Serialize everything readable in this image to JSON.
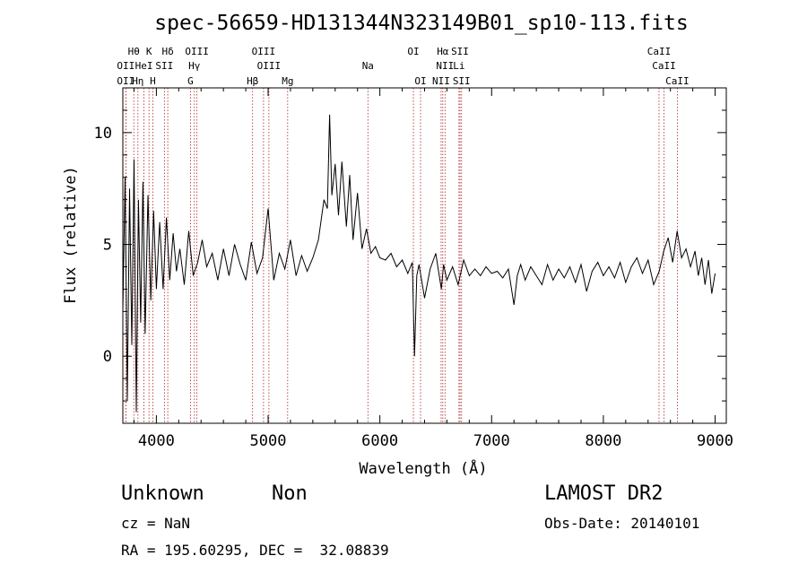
{
  "title": "spec-56659-HD131344N323149B01_sp10-113.fits",
  "footer": {
    "class_left": "Unknown",
    "class_right": "Non",
    "survey": "LAMOST DR2",
    "cz": "cz = NaN",
    "obs_date": "Obs-Date: 20140101",
    "coords": "RA = 195.60295, DEC =  32.08839"
  },
  "chart_data": {
    "type": "line",
    "xlabel": "Wavelength (Å)",
    "ylabel": "Flux (relative)",
    "xlim": [
      3700,
      9100
    ],
    "ylim": [
      -3.0,
      12.0
    ],
    "xticks": [
      4000,
      5000,
      6000,
      7000,
      8000,
      9000
    ],
    "yticks": [
      0,
      5,
      10
    ],
    "color": "#000000",
    "line_color": "#b22222",
    "series": [
      {
        "values_x": [
          3700,
          3720,
          3740,
          3760,
          3780,
          3800,
          3820,
          3840,
          3860,
          3880,
          3900,
          3925,
          3950,
          3975,
          4000,
          4030,
          4060,
          4090,
          4120,
          4150,
          4180,
          4210,
          4250,
          4290,
          4330,
          4370,
          4410,
          4450,
          4500,
          4550,
          4600,
          4650,
          4700,
          4750,
          4800,
          4850,
          4900,
          4950,
          5000,
          5050,
          5100,
          5150,
          5200,
          5250,
          5300,
          5350,
          5400,
          5450,
          5500,
          5530,
          5550,
          5570,
          5600,
          5630,
          5660,
          5700,
          5730,
          5760,
          5800,
          5840,
          5880,
          5920,
          5960,
          6000,
          6050,
          6100,
          6150,
          6200,
          6250,
          6290,
          6310,
          6330,
          6350,
          6400,
          6450,
          6500,
          6550,
          6570,
          6600,
          6650,
          6700,
          6750,
          6800,
          6850,
          6900,
          6950,
          7000,
          7050,
          7100,
          7150,
          7200,
          7230,
          7260,
          7300,
          7350,
          7400,
          7450,
          7500,
          7550,
          7600,
          7650,
          7700,
          7750,
          7800,
          7850,
          7900,
          7950,
          8000,
          8050,
          8100,
          8150,
          8200,
          8250,
          8300,
          8350,
          8400,
          8450,
          8500,
          8540,
          8580,
          8620,
          8660,
          8700,
          8740,
          8780,
          8820,
          8850,
          8880,
          8910,
          8940,
          8970,
          9000
        ],
        "values_y": [
          2.0,
          8.0,
          -2.0,
          7.5,
          0.5,
          8.8,
          -2.5,
          7.0,
          1.5,
          7.8,
          1.0,
          7.2,
          2.5,
          6.5,
          3.0,
          6.0,
          3.0,
          6.2,
          3.4,
          5.5,
          3.8,
          4.8,
          3.2,
          5.6,
          3.6,
          4.2,
          5.2,
          4.0,
          4.6,
          3.4,
          4.8,
          3.6,
          5.0,
          4.1,
          3.4,
          5.1,
          3.7,
          4.4,
          6.6,
          3.4,
          4.6,
          3.9,
          5.2,
          3.6,
          4.5,
          3.8,
          4.4,
          5.2,
          7.0,
          6.6,
          10.8,
          7.2,
          8.6,
          6.3,
          8.7,
          5.8,
          8.1,
          5.2,
          7.3,
          4.8,
          5.7,
          4.6,
          4.9,
          4.4,
          4.3,
          4.6,
          4.0,
          4.3,
          3.7,
          4.2,
          0.0,
          3.6,
          4.1,
          2.6,
          3.9,
          4.6,
          3.0,
          4.1,
          3.4,
          4.0,
          3.2,
          4.3,
          3.6,
          3.9,
          3.6,
          4.0,
          3.7,
          3.8,
          3.5,
          3.9,
          2.3,
          3.6,
          4.1,
          3.4,
          4.0,
          3.6,
          3.2,
          4.1,
          3.4,
          3.9,
          3.5,
          4.0,
          3.3,
          4.1,
          2.9,
          3.8,
          4.2,
          3.6,
          4.0,
          3.5,
          4.2,
          3.3,
          4.0,
          4.4,
          3.7,
          4.3,
          3.2,
          3.8,
          4.7,
          5.3,
          4.2,
          5.6,
          4.4,
          4.8,
          4.0,
          4.7,
          3.6,
          4.4,
          3.2,
          4.3,
          2.8,
          3.7
        ]
      }
    ],
    "lines": [
      {
        "label": "Hθ",
        "x": 3798,
        "row": 1
      },
      {
        "label": "K",
        "x": 3934,
        "row": 1
      },
      {
        "label": "Hδ",
        "x": 4102,
        "row": 1
      },
      {
        "label": "OIII",
        "x": 4363,
        "row": 1
      },
      {
        "label": "OIII",
        "x": 4959,
        "row": 1
      },
      {
        "label": "OI",
        "x": 6300,
        "row": 1
      },
      {
        "label": "Hα",
        "x": 6563,
        "row": 1
      },
      {
        "label": "SII",
        "x": 6717,
        "row": 1
      },
      {
        "label": "CaII",
        "x": 8498,
        "row": 1
      },
      {
        "label": "OII",
        "x": 3727,
        "row": 2
      },
      {
        "label": "HeI",
        "x": 3889,
        "row": 2
      },
      {
        "label": "SII",
        "x": 4072,
        "row": 2
      },
      {
        "label": "Hγ",
        "x": 4340,
        "row": 2
      },
      {
        "label": "OIII",
        "x": 5007,
        "row": 2
      },
      {
        "label": "Na",
        "x": 5893,
        "row": 2
      },
      {
        "label": "NII",
        "x": 6583,
        "row": 2
      },
      {
        "label": "Li",
        "x": 6708,
        "row": 2
      },
      {
        "label": "CaII",
        "x": 8542,
        "row": 2
      },
      {
        "label": "OII",
        "x": 3727,
        "row": 3
      },
      {
        "label": "Hη",
        "x": 3835,
        "row": 3
      },
      {
        "label": "H",
        "x": 3968,
        "row": 3
      },
      {
        "label": "G",
        "x": 4305,
        "row": 3
      },
      {
        "label": "Hβ",
        "x": 4861,
        "row": 3
      },
      {
        "label": "Mg",
        "x": 5175,
        "row": 3
      },
      {
        "label": "OI",
        "x": 6364,
        "row": 3
      },
      {
        "label": "NII",
        "x": 6548,
        "row": 3
      },
      {
        "label": "SII",
        "x": 6731,
        "row": 3
      },
      {
        "label": "CaII",
        "x": 8662,
        "row": 3
      }
    ]
  }
}
